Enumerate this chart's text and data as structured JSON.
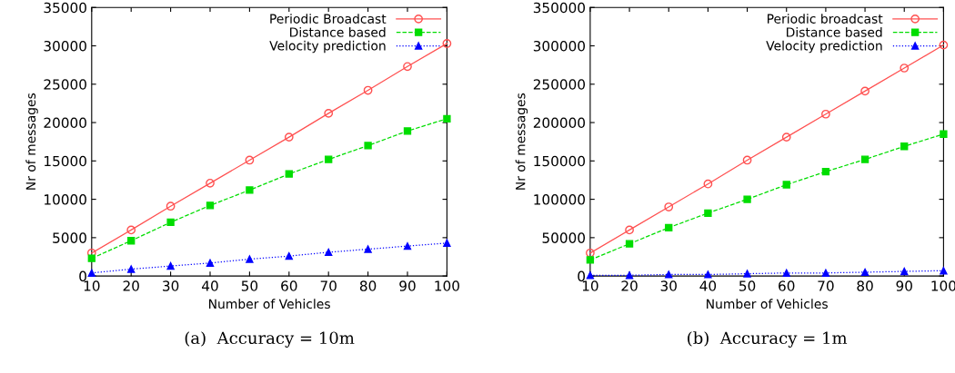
{
  "chart_data": [
    {
      "type": "line",
      "xlabel": "Number of Vehicles",
      "ylabel": "Nr of messages",
      "x": [
        10,
        20,
        30,
        40,
        50,
        60,
        70,
        80,
        90,
        100
      ],
      "xlim": [
        10,
        100
      ],
      "xticks": [
        10,
        20,
        30,
        40,
        50,
        60,
        70,
        80,
        90,
        100
      ],
      "ylim": [
        0,
        35000
      ],
      "yticks": [
        0,
        5000,
        10000,
        15000,
        20000,
        25000,
        30000,
        35000
      ],
      "legend": "top right",
      "annotations": [
        "(a)  Accuracy = 10m"
      ],
      "series": [
        {
          "name": "Periodic Broadcast",
          "color": "#ff5050",
          "marker": "circle",
          "line_style": "solid",
          "values": [
            3000,
            6000,
            9100,
            12100,
            15100,
            18100,
            21200,
            24200,
            27300,
            30300
          ]
        },
        {
          "name": "Distance based",
          "color": "#00dd00",
          "marker": "square",
          "line_style": "dashed",
          "values": [
            2300,
            4600,
            7000,
            9200,
            11200,
            13300,
            15200,
            17000,
            18900,
            20500
          ]
        },
        {
          "name": "Velocity prediction",
          "color": "#0000ff",
          "marker": "triangle",
          "line_style": "dotted",
          "values": [
            400,
            900,
            1300,
            1700,
            2200,
            2600,
            3100,
            3500,
            3900,
            4300
          ]
        }
      ]
    },
    {
      "type": "line",
      "xlabel": "Number of Vehicles",
      "ylabel": "Nr of messages",
      "x": [
        10,
        20,
        30,
        40,
        50,
        60,
        70,
        80,
        90,
        100
      ],
      "xlim": [
        10,
        100
      ],
      "xticks": [
        10,
        20,
        30,
        40,
        50,
        60,
        70,
        80,
        90,
        100
      ],
      "ylim": [
        0,
        350000
      ],
      "yticks": [
        0,
        50000,
        100000,
        150000,
        200000,
        250000,
        300000,
        350000
      ],
      "legend": "top right",
      "annotations": [
        "(b)  Accuracy = 1m"
      ],
      "series": [
        {
          "name": "Periodic broadcast",
          "color": "#ff5050",
          "marker": "circle",
          "line_style": "solid",
          "values": [
            30000,
            60000,
            90000,
            120000,
            151000,
            181000,
            211000,
            241000,
            271000,
            301000
          ]
        },
        {
          "name": "Distance based",
          "color": "#00dd00",
          "marker": "square",
          "line_style": "dashed",
          "values": [
            21000,
            42000,
            63000,
            82000,
            100000,
            119000,
            136000,
            152000,
            169000,
            185000
          ]
        },
        {
          "name": "Velocity prediction",
          "color": "#0000ff",
          "marker": "triangle",
          "line_style": "dotted",
          "values": [
            1000,
            1000,
            2000,
            2000,
            3000,
            4000,
            4000,
            5000,
            6000,
            7000
          ]
        }
      ]
    }
  ]
}
